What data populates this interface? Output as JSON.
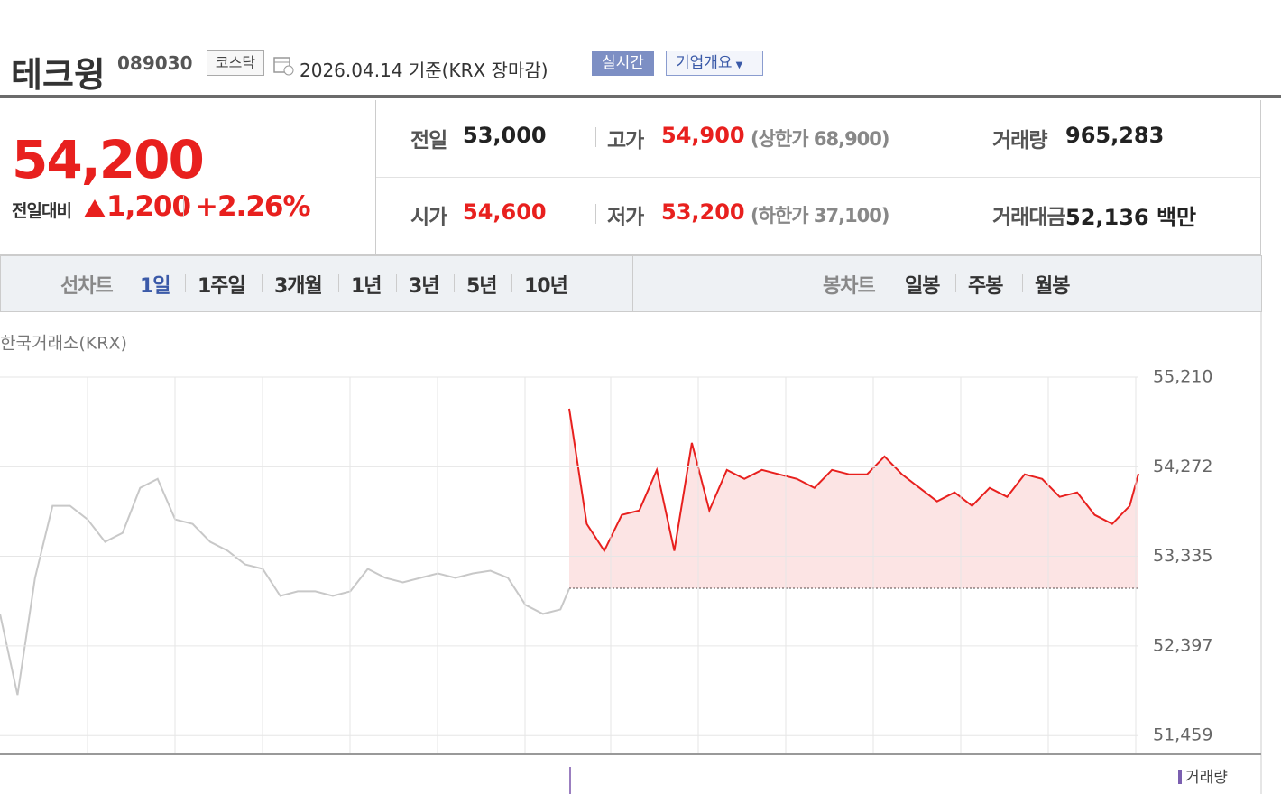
{
  "header": {
    "name": "테크윙",
    "code": "089030",
    "market": "코스닥",
    "date": "2026.04.14 기준(KRX 장마감)",
    "realtime": "실시간",
    "overview": "기업개요"
  },
  "price": {
    "current": "54,200",
    "change_label": "전일대비",
    "change": "1,200",
    "change_pct": "+2.26%",
    "color": "#e8201e"
  },
  "stats": [
    {
      "label": "전일",
      "value": "53,000",
      "color": "#222222"
    },
    {
      "label": "고가",
      "value": "54,900",
      "note": "(상한가 68,900)",
      "color": "#e8201e"
    },
    {
      "label": "거래량",
      "value": "965,283",
      "color": "#222222"
    },
    {
      "label": "시가",
      "value": "54,600",
      "color": "#e8201e"
    },
    {
      "label": "저가",
      "value": "53,200",
      "note": "(하한가 37,100)",
      "color": "#e8201e"
    },
    {
      "label": "거래대금",
      "value": "52,136 백만",
      "color": "#222222"
    }
  ],
  "tabs": {
    "line_label": "선차트",
    "line": [
      "1일",
      "1주일",
      "3개월",
      "1년",
      "3년",
      "5년",
      "10년"
    ],
    "candle_label": "봉차트",
    "candle": [
      "일봉",
      "주봉",
      "월봉"
    ]
  },
  "chart_data": {
    "type": "line",
    "source": "한국거래소(KRX)",
    "volume_label": "거래량",
    "xlim": [
      0,
      130
    ],
    "ylim": [
      51272,
      55210
    ],
    "yticks": [
      {
        "value": 55210,
        "label": "55,210"
      },
      {
        "value": 54272,
        "label": "54,272"
      },
      {
        "value": 53335,
        "label": "53,335"
      },
      {
        "value": 52397,
        "label": "52,397"
      },
      {
        "value": 51459,
        "label": "51,459"
      }
    ],
    "grid": true,
    "baseline": 53000,
    "series": [
      {
        "color": "#c8c8c8",
        "area": false,
        "x": [
          0,
          2,
          4,
          6,
          8,
          10,
          12,
          14,
          16,
          18,
          20,
          22,
          24,
          26,
          28,
          30,
          32,
          34,
          36,
          38,
          40,
          42,
          44,
          46,
          48,
          50,
          52,
          54,
          56,
          58,
          60,
          62,
          64,
          65
        ],
        "values": [
          52732,
          51884,
          53109,
          53863,
          53863,
          53721,
          53486,
          53580,
          54051,
          54145,
          53721,
          53674,
          53486,
          53392,
          53250,
          53203,
          52920,
          52968,
          52968,
          52920,
          52968,
          53203,
          53109,
          53062,
          53109,
          53156,
          53109,
          53156,
          53184,
          53109,
          52826,
          52732,
          52779,
          52996
        ]
      },
      {
        "color": "#e8201e",
        "area": true,
        "x": [
          65,
          67,
          69,
          71,
          73,
          75,
          77,
          79,
          81,
          83,
          85,
          87,
          89,
          91,
          93,
          95,
          97,
          99,
          101,
          103,
          105,
          107,
          109,
          111,
          113,
          115,
          117,
          119,
          121,
          123,
          125,
          127,
          129,
          130
        ],
        "values": [
          54880,
          53674,
          53392,
          53768,
          53815,
          54239,
          53392,
          54522,
          53815,
          54239,
          54145,
          54239,
          54192,
          54145,
          54051,
          54239,
          54192,
          54192,
          54380,
          54192,
          54051,
          53910,
          54004,
          53863,
          54051,
          53957,
          54192,
          54145,
          53957,
          54004,
          53768,
          53674,
          53863,
          54200
        ]
      }
    ]
  }
}
